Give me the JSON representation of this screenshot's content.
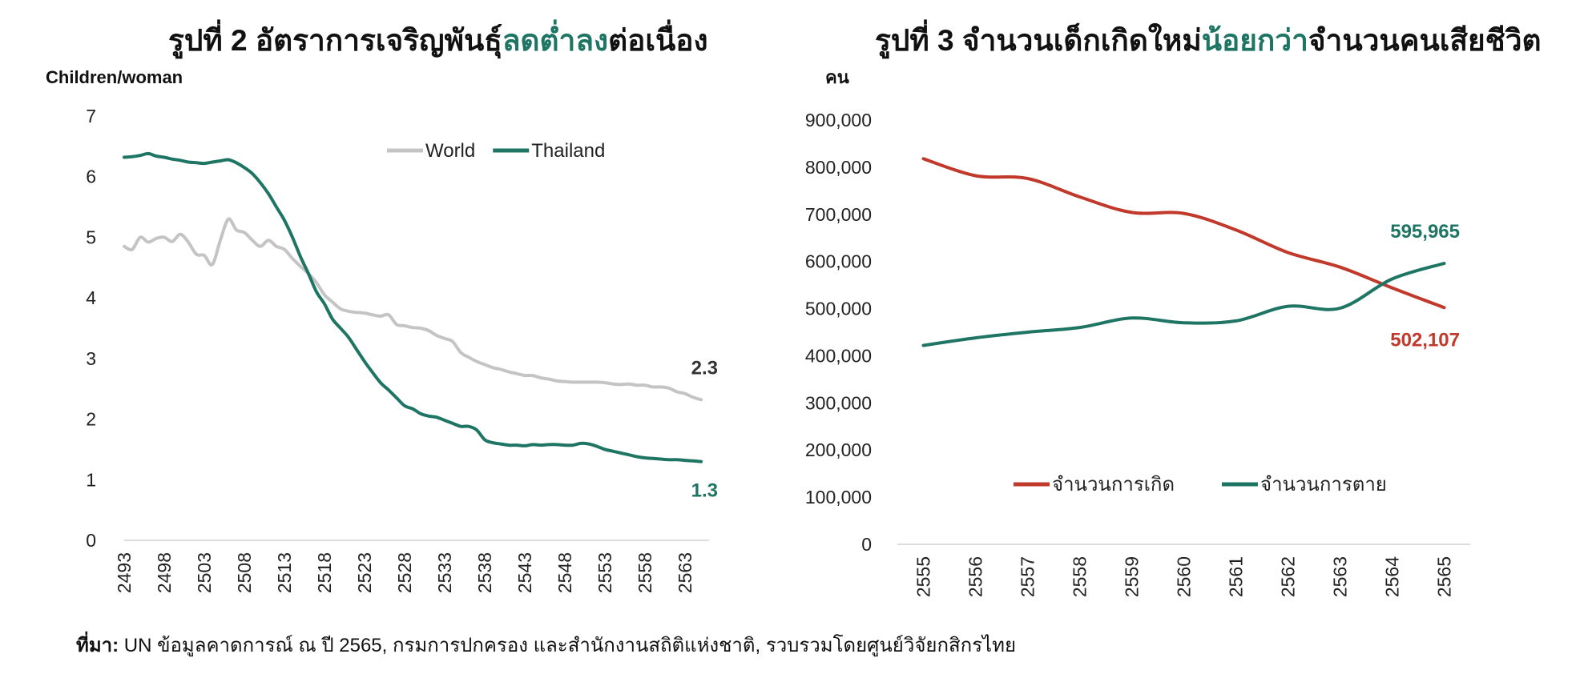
{
  "titles": {
    "left": {
      "before": "รูปที่ 2 อัตราการเจริญพันธุ์",
      "highlight": "ลดต่ำลง",
      "after": "ต่อเนื่อง"
    },
    "right": {
      "before": "รูปที่ 3 จำนวนเด็กเกิดใหม่",
      "highlight": "น้อยกว่า",
      "after": "จำนวนคนเสียชีวิต"
    }
  },
  "colors": {
    "world": "#c4c4c4",
    "thailand": "#1e7563",
    "births": "#c0392b",
    "deaths": "#1e7563",
    "highlight": "#1e7563",
    "axis": "#d0d0d0"
  },
  "source": {
    "label": "ที่มา:",
    "text": " UN ข้อมูลคาดการณ์ ณ ปี 2565, กรมการปกครอง และสำนักงานสถิติแห่งชาติ, รวบรวมโดยศูนย์วิจัยกสิกรไทย"
  },
  "chart_data": [
    {
      "type": "line",
      "ylabel": "Children/woman",
      "ylim": [
        0,
        7
      ],
      "yticks": [
        "0",
        "1",
        "2",
        "3",
        "4",
        "5",
        "6",
        "7"
      ],
      "xlim": [
        2493,
        2566
      ],
      "xticks": [
        "2493",
        "2498",
        "2503",
        "2508",
        "2513",
        "2518",
        "2523",
        "2528",
        "2533",
        "2538",
        "2543",
        "2548",
        "2553",
        "2558",
        "2563"
      ],
      "legend_position": "top-right",
      "grid": false,
      "series": [
        {
          "name": "World",
          "color": "#c4c4c4",
          "x": [
            2493,
            2494,
            2495,
            2496,
            2497,
            2498,
            2499,
            2500,
            2501,
            2502,
            2503,
            2504,
            2505,
            2506,
            2507,
            2508,
            2509,
            2510,
            2511,
            2512,
            2513,
            2514,
            2515,
            2516,
            2517,
            2518,
            2519,
            2520,
            2521,
            2522,
            2523,
            2524,
            2525,
            2526,
            2527,
            2528,
            2529,
            2530,
            2531,
            2532,
            2533,
            2534,
            2535,
            2536,
            2537,
            2538,
            2539,
            2540,
            2541,
            2542,
            2543,
            2544,
            2545,
            2546,
            2547,
            2548,
            2549,
            2550,
            2551,
            2552,
            2553,
            2554,
            2555,
            2556,
            2557,
            2558,
            2559,
            2560,
            2561,
            2562,
            2563,
            2564,
            2565
          ],
          "values": [
            4.85,
            4.8,
            5.0,
            4.92,
            4.98,
            5.0,
            4.93,
            5.05,
            4.92,
            4.72,
            4.7,
            4.55,
            4.95,
            5.3,
            5.12,
            5.08,
            4.95,
            4.85,
            4.95,
            4.85,
            4.8,
            4.65,
            4.52,
            4.4,
            4.25,
            4.05,
            3.93,
            3.82,
            3.78,
            3.76,
            3.75,
            3.72,
            3.7,
            3.72,
            3.56,
            3.54,
            3.51,
            3.5,
            3.46,
            3.38,
            3.33,
            3.28,
            3.1,
            3.02,
            2.95,
            2.9,
            2.85,
            2.82,
            2.78,
            2.75,
            2.72,
            2.72,
            2.68,
            2.66,
            2.63,
            2.62,
            2.61,
            2.61,
            2.61,
            2.61,
            2.6,
            2.58,
            2.57,
            2.58,
            2.56,
            2.56,
            2.53,
            2.53,
            2.51,
            2.45,
            2.42,
            2.36,
            2.32
          ]
        },
        {
          "name": "Thailand",
          "color": "#1e7563",
          "x": [
            2493,
            2494,
            2495,
            2496,
            2497,
            2498,
            2499,
            2500,
            2501,
            2502,
            2503,
            2504,
            2505,
            2506,
            2507,
            2508,
            2509,
            2510,
            2511,
            2512,
            2513,
            2514,
            2515,
            2516,
            2517,
            2518,
            2519,
            2520,
            2521,
            2522,
            2523,
            2524,
            2525,
            2526,
            2527,
            2528,
            2529,
            2530,
            2531,
            2532,
            2533,
            2534,
            2535,
            2536,
            2537,
            2538,
            2539,
            2540,
            2541,
            2542,
            2543,
            2544,
            2545,
            2546,
            2547,
            2548,
            2549,
            2550,
            2551,
            2552,
            2553,
            2554,
            2555,
            2556,
            2557,
            2558,
            2559,
            2560,
            2561,
            2562,
            2563,
            2564,
            2565
          ],
          "values": [
            6.32,
            6.33,
            6.35,
            6.38,
            6.34,
            6.32,
            6.29,
            6.27,
            6.24,
            6.23,
            6.22,
            6.24,
            6.26,
            6.28,
            6.23,
            6.15,
            6.05,
            5.9,
            5.72,
            5.5,
            5.28,
            5.0,
            4.68,
            4.4,
            4.1,
            3.9,
            3.65,
            3.5,
            3.35,
            3.15,
            2.95,
            2.77,
            2.6,
            2.48,
            2.35,
            2.22,
            2.17,
            2.09,
            2.05,
            2.03,
            1.98,
            1.93,
            1.88,
            1.88,
            1.82,
            1.66,
            1.61,
            1.59,
            1.57,
            1.57,
            1.56,
            1.58,
            1.57,
            1.58,
            1.58,
            1.57,
            1.57,
            1.6,
            1.59,
            1.55,
            1.5,
            1.47,
            1.44,
            1.41,
            1.38,
            1.36,
            1.35,
            1.34,
            1.33,
            1.33,
            1.32,
            1.31,
            1.3
          ]
        }
      ],
      "end_labels": [
        {
          "text": "2.3",
          "series": "World",
          "color": "#333333"
        },
        {
          "text": "1.3",
          "series": "Thailand",
          "color": "#1e7563"
        }
      ]
    },
    {
      "type": "line",
      "ylabel": "คน",
      "ylim": [
        0,
        900000
      ],
      "yticks": [
        "0",
        "100,000",
        "200,000",
        "300,000",
        "400,000",
        "500,000",
        "600,000",
        "700,000",
        "800,000",
        "900,000"
      ],
      "categories": [
        "2555",
        "2556",
        "2557",
        "2558",
        "2559",
        "2560",
        "2561",
        "2562",
        "2563",
        "2564",
        "2565"
      ],
      "legend_position": "bottom-center",
      "grid": false,
      "series": [
        {
          "name": "จำนวนการเกิด",
          "color": "#c0392b",
          "values": [
            818000,
            782000,
            776000,
            737000,
            704000,
            702000,
            667000,
            619000,
            588000,
            544000,
            502107
          ]
        },
        {
          "name": "จำนวนการตาย",
          "color": "#1e7563",
          "values": [
            422000,
            438000,
            450000,
            460000,
            480000,
            470000,
            474000,
            505000,
            501000,
            563000,
            595965
          ]
        }
      ],
      "end_labels": [
        {
          "text": "595,965",
          "series": "จำนวนการตาย",
          "color": "#1e7563"
        },
        {
          "text": "502,107",
          "series": "จำนวนการเกิด",
          "color": "#c0392b"
        }
      ]
    }
  ]
}
